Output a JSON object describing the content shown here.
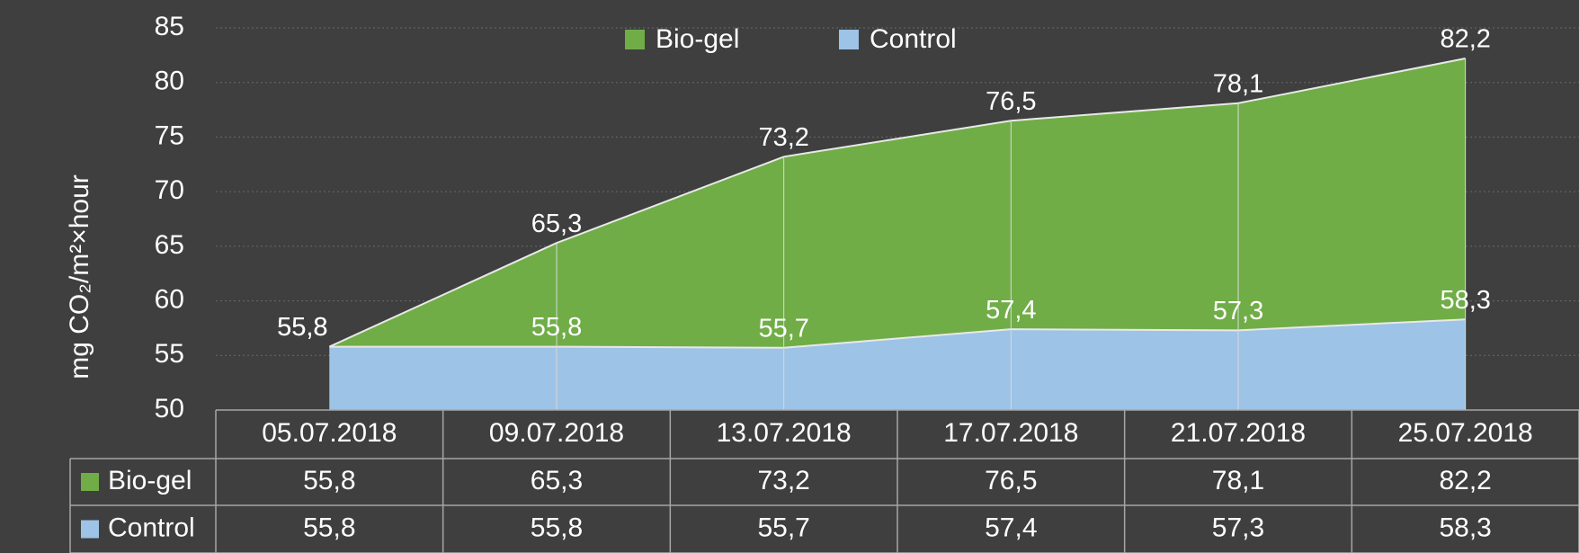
{
  "chart_data": {
    "type": "area",
    "y_label": "mg CO₂/m²×hour",
    "categories": [
      "05.07.2018",
      "09.07.2018",
      "13.07.2018",
      "17.07.2018",
      "21.07.2018",
      "25.07.2018"
    ],
    "series": [
      {
        "name": "Bio-gel",
        "color": "#70ad47",
        "values": [
          55.8,
          65.3,
          73.2,
          76.5,
          78.1,
          82.2
        ],
        "value_labels": [
          "55,8",
          "65,3",
          "73,2",
          "76,5",
          "78,1",
          "82,2"
        ]
      },
      {
        "name": "Control",
        "color": "#9dc3e6",
        "values": [
          55.8,
          55.8,
          55.7,
          57.4,
          57.3,
          58.3
        ],
        "value_labels": [
          "55,8",
          "55,8",
          "55,7",
          "57,4",
          "57,3",
          "58,3"
        ]
      }
    ],
    "ylim": [
      50,
      85
    ],
    "yticks": [
      50,
      55,
      60,
      65,
      70,
      75,
      80,
      85
    ],
    "grid": true,
    "legend": "top"
  }
}
